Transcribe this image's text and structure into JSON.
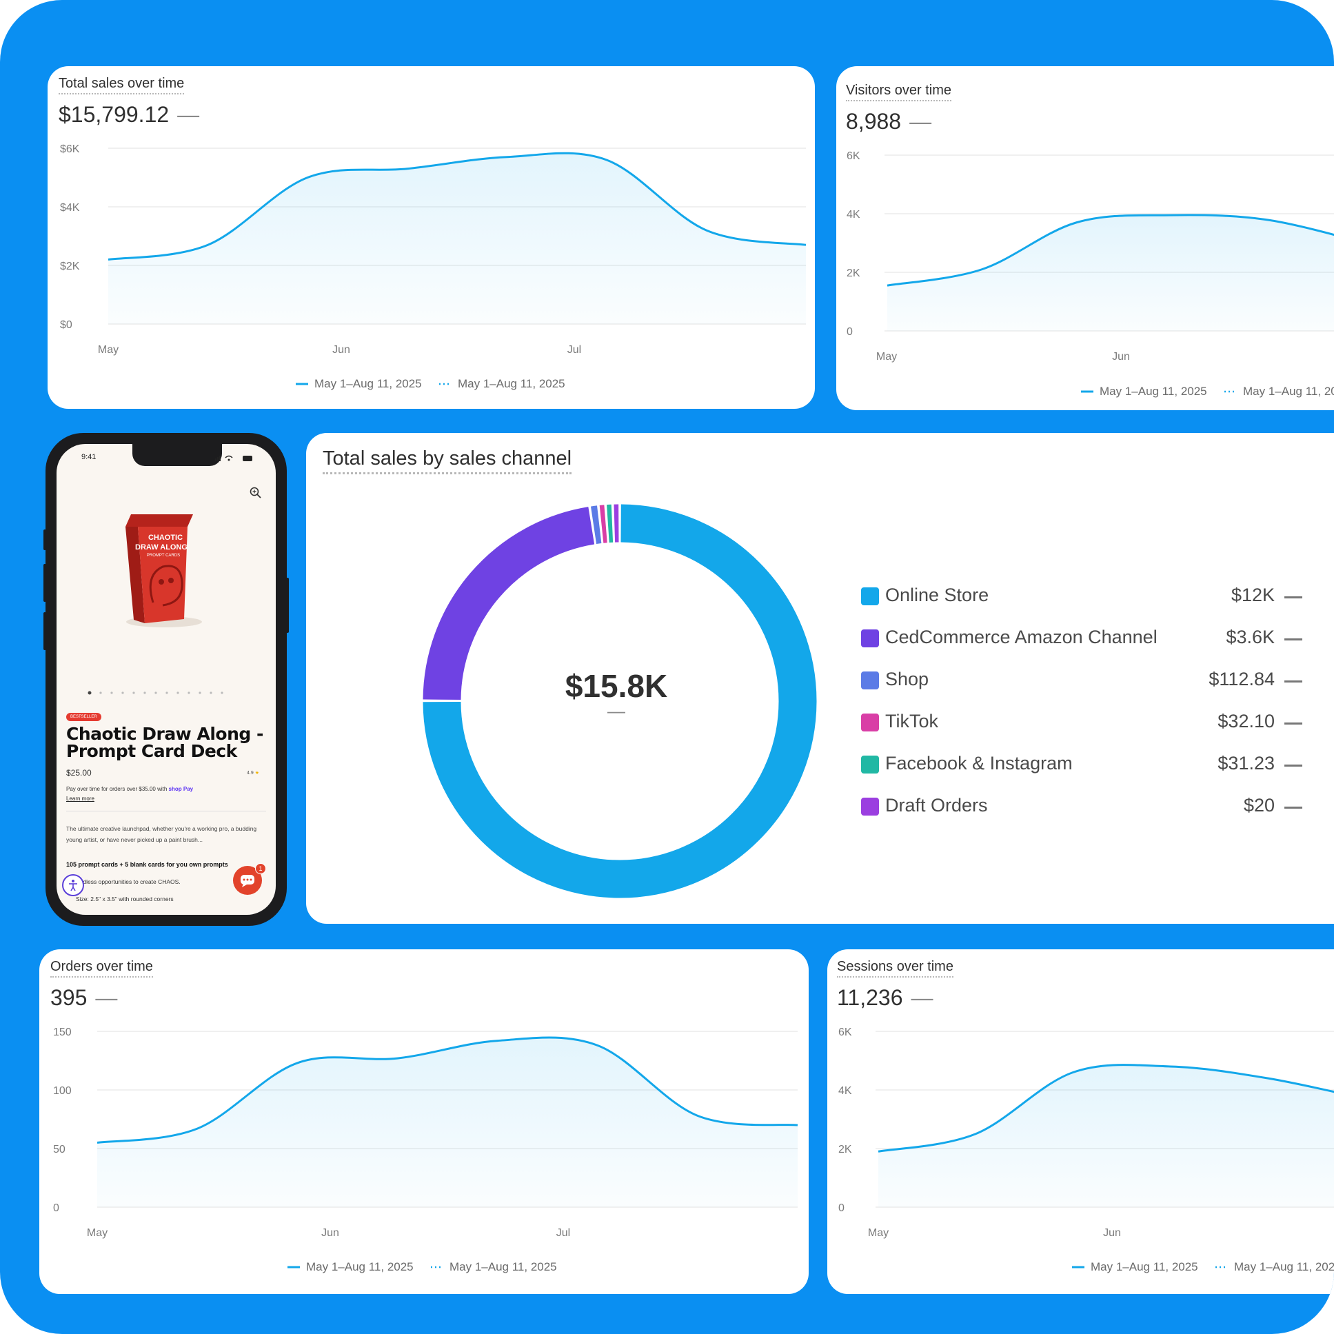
{
  "legend": {
    "current": "May 1–Aug 11, 2025",
    "comparison": "May 1–Aug 11, 2025"
  },
  "cards": {
    "total_sales": {
      "title": "Total sales over time",
      "value": "$15,799.12",
      "dash": "—"
    },
    "visitors": {
      "title": "Visitors over time",
      "value": "8,988",
      "dash": "—"
    },
    "orders": {
      "title": "Orders over time",
      "value": "395",
      "dash": "—"
    },
    "sessions": {
      "title": "Sessions over time",
      "value": "11,236",
      "dash": "—"
    }
  },
  "donut_card": {
    "title": "Total sales by sales channel",
    "center_value": "$15.8K",
    "center_dash": "—"
  },
  "chart_data": [
    {
      "id": "total_sales",
      "type": "line",
      "title": "Total sales over time",
      "x": [
        "May 1",
        "May 15",
        "Jun 1",
        "Jun 15",
        "Jul 1",
        "Jul 15",
        "Aug 1",
        "Aug 11"
      ],
      "y_tick_labels": [
        "$0",
        "$2K",
        "$4K",
        "$6K"
      ],
      "x_tick_labels": [
        "May",
        "Jun",
        "Jul"
      ],
      "ylim": [
        0,
        6000
      ],
      "series": [
        {
          "name": "May 1–Aug 11, 2025",
          "values": [
            2200,
            2700,
            5000,
            5300,
            5700,
            5600,
            3200,
            2700
          ]
        }
      ]
    },
    {
      "id": "visitors",
      "type": "line",
      "title": "Visitors over time",
      "x": [
        "May 1",
        "May 15",
        "Jun 1",
        "Jun 15",
        "Jul 1",
        "Jul 15"
      ],
      "y_tick_labels": [
        "0",
        "2K",
        "4K",
        "6K"
      ],
      "x_tick_labels": [
        "May",
        "Jun"
      ],
      "ylim": [
        0,
        6000
      ],
      "series": [
        {
          "name": "May 1–Aug 11, 2025",
          "values": [
            1550,
            2100,
            3700,
            3950,
            3800,
            3050
          ]
        }
      ]
    },
    {
      "id": "donut",
      "type": "pie",
      "title": "Total sales by sales channel",
      "categories": [
        "Online Store",
        "CedCommerce Amazon Channel",
        "Shop",
        "TikTok",
        "Facebook & Instagram",
        "Draft Orders"
      ],
      "values": [
        12000,
        3600,
        112.84,
        32.1,
        31.23,
        20
      ],
      "value_labels": [
        "$12K",
        "$3.6K",
        "$112.84",
        "$32.10",
        "$31.23",
        "$20"
      ],
      "colors": [
        "#13a7ea",
        "#6f42e3",
        "#5b7be6",
        "#d93ea6",
        "#21b8a4",
        "#9b3fe0"
      ]
    },
    {
      "id": "orders",
      "type": "line",
      "title": "Orders over time",
      "x": [
        "May 1",
        "May 15",
        "Jun 1",
        "Jun 15",
        "Jul 1",
        "Jul 15",
        "Aug 1",
        "Aug 11"
      ],
      "y_tick_labels": [
        "0",
        "50",
        "100",
        "150"
      ],
      "x_tick_labels": [
        "May",
        "Jun",
        "Jul"
      ],
      "ylim": [
        0,
        150
      ],
      "series": [
        {
          "name": "May 1–Aug 11, 2025",
          "values": [
            55,
            67,
            123,
            127,
            142,
            138,
            78,
            70
          ]
        }
      ]
    },
    {
      "id": "sessions",
      "type": "line",
      "title": "Sessions over time",
      "x": [
        "May 1",
        "May 15",
        "Jun 1",
        "Jun 15",
        "Jul 1",
        "Jul 15"
      ],
      "y_tick_labels": [
        "0",
        "2K",
        "4K",
        "6K"
      ],
      "x_tick_labels": [
        "May",
        "Jun"
      ],
      "ylim": [
        0,
        6000
      ],
      "series": [
        {
          "name": "May 1–Aug 11, 2025",
          "values": [
            1900,
            2500,
            4600,
            4800,
            4400,
            3700
          ]
        }
      ]
    }
  ],
  "phone": {
    "time": "9:41",
    "badge": "BESTSELLER",
    "title": "Chaotic Draw Along - Prompt Card Deck",
    "box_line1": "CHAOTIC",
    "box_line2": "DRAW ALONG",
    "box_line3": "PROMPT CARDS",
    "price": "$25.00",
    "rating": "4.9",
    "pay_text": "Pay over time for orders over $35.00 with",
    "pay_brand": "shop Pay",
    "learn_more": "Learn more",
    "description": "The ultimate creative launchpad, whether you're a working pro, a budding young artist, or have never picked up a paint brush...",
    "bold_line": "105 prompt cards + 5 blank cards for you own prompts",
    "bullet1": "Endless opportunities to create CHAOS.",
    "bullet2": "Size: 2.5\" x 3.5\" with rounded corners",
    "chat_badge": "1"
  }
}
